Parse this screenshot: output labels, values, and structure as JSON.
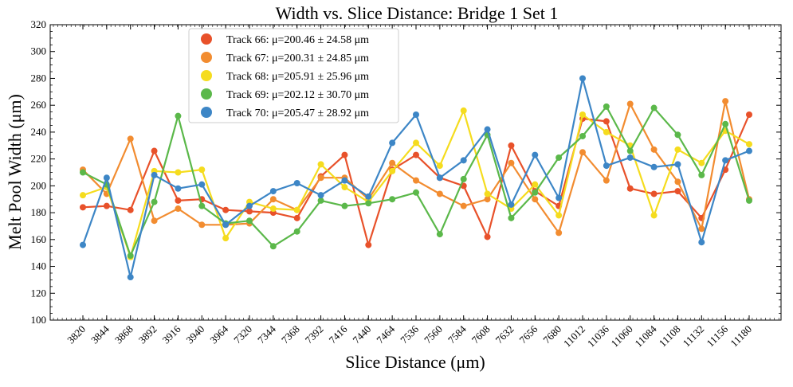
{
  "chart_data": {
    "type": "line",
    "title": "Width vs. Slice Distance: Bridge 1 Set 1",
    "xlabel": "Slice Distance (μm)",
    "ylabel": "Melt Pool Width (μm)",
    "ylim": [
      100,
      320
    ],
    "yticks": [
      100,
      120,
      140,
      160,
      180,
      200,
      220,
      240,
      260,
      280,
      300,
      320
    ],
    "categories": [
      "3820",
      "3844",
      "3868",
      "3892",
      "3916",
      "3940",
      "3964",
      "7320",
      "7344",
      "7368",
      "7392",
      "7416",
      "7440",
      "7464",
      "7536",
      "7560",
      "7584",
      "7608",
      "7632",
      "7656",
      "7680",
      "11012",
      "11036",
      "11060",
      "11084",
      "11108",
      "11132",
      "11156",
      "11180"
    ],
    "legend_position": "upper-left",
    "series": [
      {
        "name": "Track 66: μ=200.46 ± 24.58 μm",
        "color": "#e8512a",
        "values": [
          184,
          185,
          182,
          226,
          189,
          190,
          182,
          181,
          180,
          176,
          207,
          223,
          156,
          212,
          223,
          206,
          200,
          162,
          230,
          196,
          185,
          250,
          248,
          198,
          194,
          196,
          176,
          212,
          253
        ]
      },
      {
        "name": "Track 67: μ=200.31 ± 24.85 μm",
        "color": "#f28c30",
        "values": [
          212,
          194,
          235,
          174,
          183,
          171,
          171,
          172,
          190,
          182,
          206,
          206,
          190,
          217,
          204,
          194,
          185,
          190,
          217,
          190,
          165,
          225,
          204,
          261,
          227,
          203,
          168,
          263,
          190
        ]
      },
      {
        "name": "Track 68: μ=205.91 ± 25.96 μm",
        "color": "#f5dc1e",
        "values": [
          193,
          199,
          147,
          211,
          210,
          212,
          161,
          188,
          183,
          182,
          216,
          199,
          188,
          211,
          232,
          215,
          256,
          194,
          183,
          201,
          178,
          253,
          240,
          230,
          178,
          227,
          217,
          241,
          231
        ]
      },
      {
        "name": "Track 69: μ=202.12 ± 30.70 μm",
        "color": "#5bb84a",
        "values": [
          210,
          201,
          148,
          188,
          252,
          185,
          172,
          174,
          155,
          166,
          189,
          185,
          187,
          190,
          195,
          164,
          205,
          238,
          176,
          195,
          221,
          237,
          259,
          226,
          258,
          238,
          208,
          246,
          189
        ]
      },
      {
        "name": "Track 70: μ=205.47 ± 28.92 μm",
        "color": "#3d86c6",
        "values": [
          156,
          206,
          132,
          208,
          198,
          201,
          171,
          185,
          196,
          202,
          193,
          204,
          192,
          232,
          253,
          206,
          219,
          242,
          186,
          223,
          191,
          280,
          215,
          221,
          214,
          216,
          158,
          219,
          226
        ]
      }
    ]
  }
}
